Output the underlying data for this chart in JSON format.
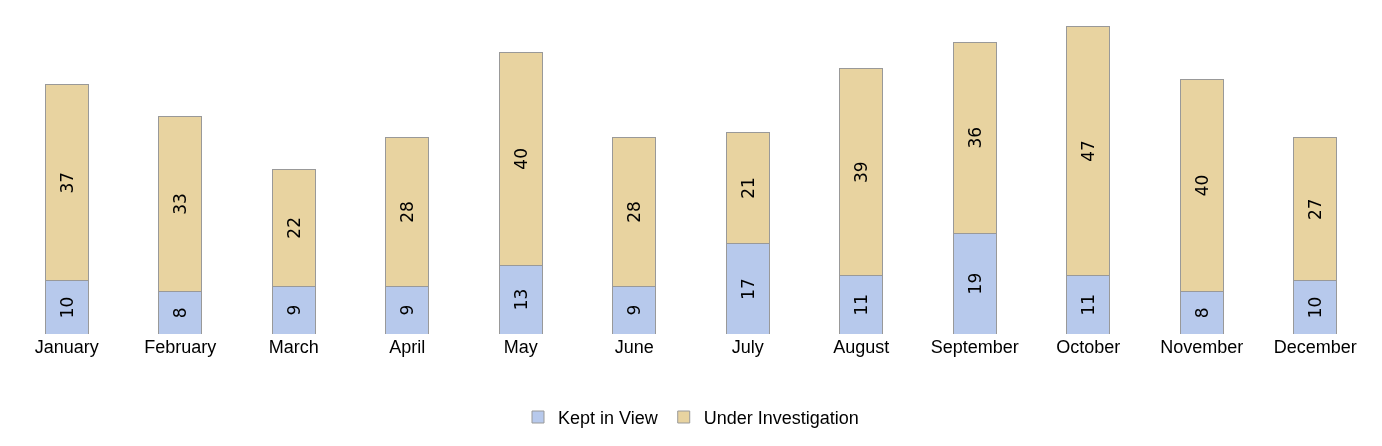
{
  "chart_data": {
    "type": "bar",
    "stacked": true,
    "data_labels": true,
    "legend": "bottom",
    "categories": [
      "January",
      "February",
      "March",
      "April",
      "May",
      "June",
      "July",
      "August",
      "September",
      "October",
      "November",
      "December"
    ],
    "series": [
      {
        "name": "Kept in View",
        "color": "#b7c9ec",
        "values": [
          10,
          8,
          9,
          9,
          13,
          9,
          17,
          11,
          19,
          11,
          8,
          10
        ]
      },
      {
        "name": "Under Investigation",
        "color": "#e8d3a0",
        "values": [
          37,
          33,
          22,
          28,
          40,
          28,
          21,
          39,
          36,
          47,
          40,
          27
        ]
      }
    ]
  }
}
